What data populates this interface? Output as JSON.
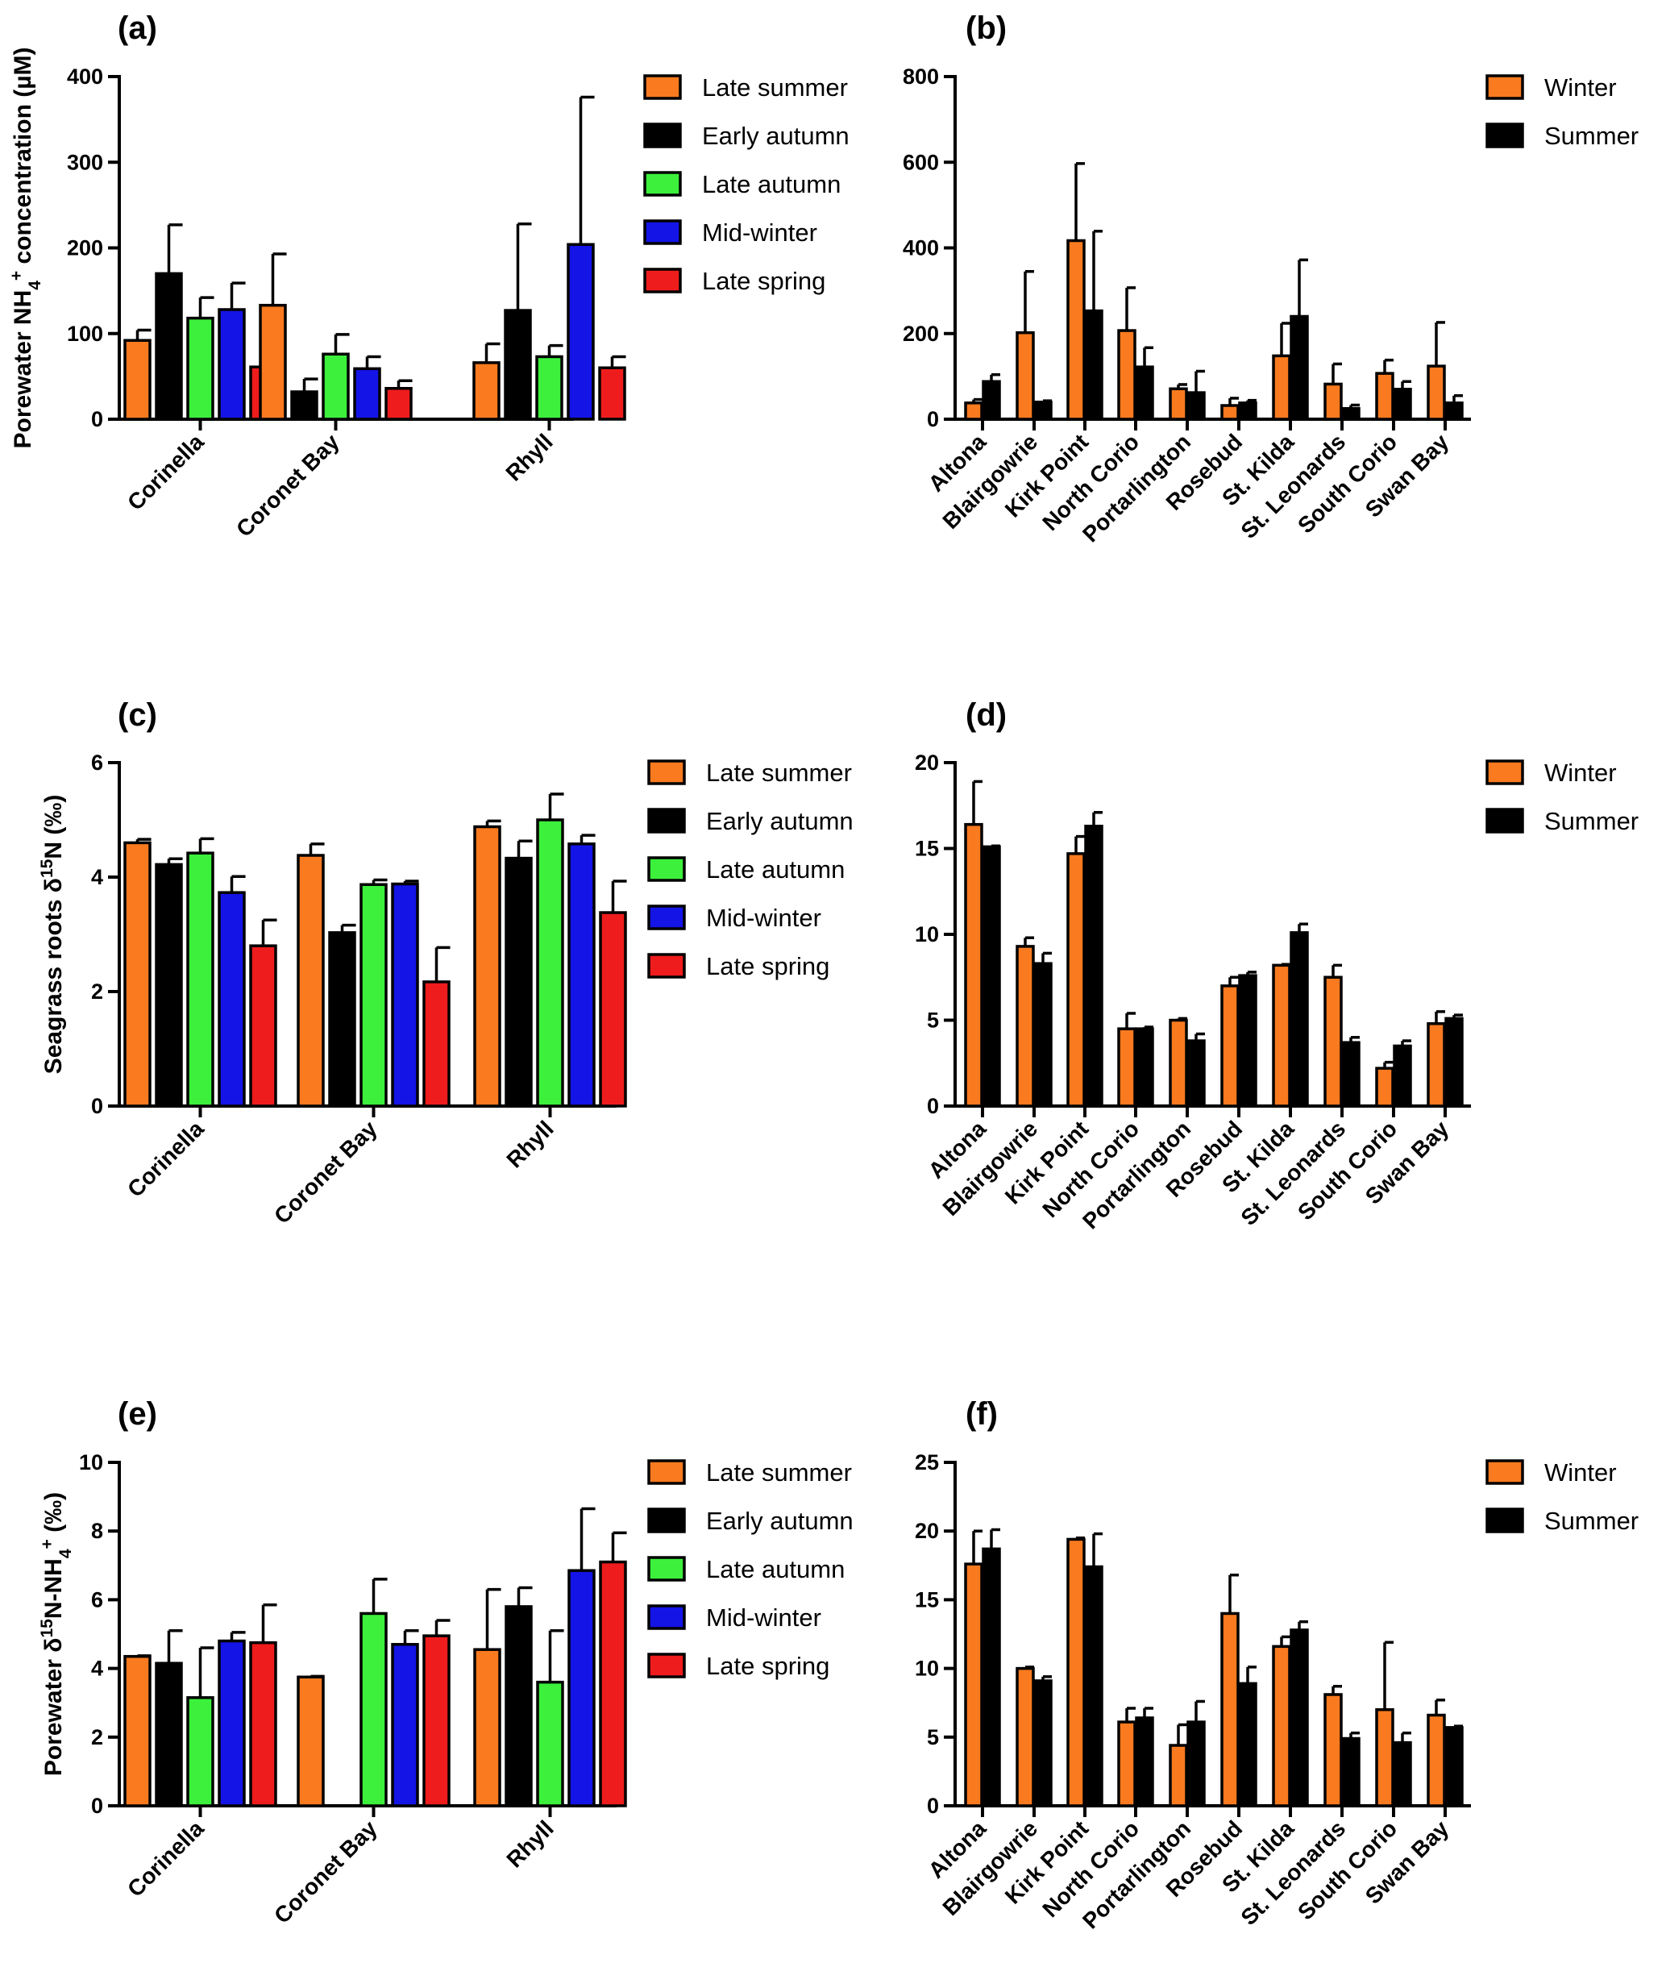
{
  "colors": {
    "late_summer": "#f97a1f",
    "early_autumn": "#000000",
    "late_autumn": "#3cf03c",
    "mid_winter": "#1414e6",
    "late_spring": "#ee1c1c",
    "winter": "#f97a1f",
    "summer": "#000000"
  },
  "chart_data": [
    {
      "panel": "(a)",
      "type": "bar",
      "ylabel_parts": [
        "Porewater NH",
        "4",
        "+",
        " concentration (µM)"
      ],
      "ylim": [
        0,
        400
      ],
      "yticks": [
        "0",
        "100",
        "200",
        "300",
        "400"
      ],
      "categories": [
        "Corinella",
        "Coronet Bay",
        "Rhyll"
      ],
      "legend": [
        "Late summer",
        "Early autumn",
        "Late autumn",
        "Mid-winter",
        "Late spring"
      ],
      "series": [
        {
          "name": "Late summer",
          "values": [
            92,
            133,
            66
          ],
          "errors": [
            12,
            60,
            22
          ]
        },
        {
          "name": "Early autumn",
          "values": [
            170,
            32,
            127
          ],
          "errors": [
            57,
            15,
            101
          ]
        },
        {
          "name": "Late autumn",
          "values": [
            118,
            76,
            73
          ],
          "errors": [
            24,
            23,
            13
          ]
        },
        {
          "name": "Mid-winter",
          "values": [
            128,
            59,
            204
          ],
          "errors": [
            31,
            14,
            172
          ]
        },
        {
          "name": "Late spring",
          "values": [
            61,
            36,
            60
          ],
          "errors": [
            7,
            9,
            13
          ]
        }
      ]
    },
    {
      "panel": "(b)",
      "type": "bar",
      "ylim": [
        0,
        800
      ],
      "yticks": [
        "0",
        "200",
        "400",
        "600",
        "800"
      ],
      "categories": [
        "Altona",
        "Blairgowrie",
        "Kirk Point",
        "North Corio",
        "Portarlington",
        "Rosebud",
        "St. Kilda",
        "St. Leonards",
        "South Corio",
        "Swan Bay"
      ],
      "legend": [
        "Winter",
        "Summer"
      ],
      "series": [
        {
          "name": "Winter",
          "values": [
            38,
            202,
            417,
            207,
            71,
            32,
            148,
            82,
            107,
            124
          ],
          "errors": [
            8,
            143,
            180,
            100,
            10,
            17,
            76,
            47,
            31,
            102
          ]
        },
        {
          "name": "Summer",
          "values": [
            88,
            40,
            253,
            122,
            62,
            38,
            240,
            25,
            70,
            38
          ],
          "errors": [
            16,
            3,
            186,
            45,
            50,
            6,
            132,
            8,
            18,
            17
          ]
        }
      ]
    },
    {
      "panel": "(c)",
      "type": "bar",
      "ylabel_parts": [
        "Seagrass  roots δ",
        "15",
        "N (‰)"
      ],
      "ylim": [
        0,
        6
      ],
      "yticks": [
        "0",
        "2",
        "4",
        "6"
      ],
      "categories": [
        "Corinella",
        "Coronet Bay",
        "Rhyll"
      ],
      "legend": [
        "Late summer",
        "Early autumn",
        "Late autumn",
        "Mid-winter",
        "Late spring"
      ],
      "series": [
        {
          "name": "Late summer",
          "values": [
            4.6,
            4.38,
            4.88
          ],
          "errors": [
            0.06,
            0.2,
            0.1
          ]
        },
        {
          "name": "Early autumn",
          "values": [
            4.22,
            3.03,
            4.33
          ],
          "errors": [
            0.1,
            0.13,
            0.3
          ]
        },
        {
          "name": "Late autumn",
          "values": [
            4.42,
            3.87,
            5.0
          ],
          "errors": [
            0.25,
            0.08,
            0.45
          ]
        },
        {
          "name": "Mid-winter",
          "values": [
            3.73,
            3.88,
            4.58
          ],
          "errors": [
            0.28,
            0.05,
            0.15
          ]
        },
        {
          "name": "Late spring",
          "values": [
            2.8,
            2.17,
            3.38
          ],
          "errors": [
            0.45,
            0.6,
            0.55
          ]
        }
      ]
    },
    {
      "panel": "(d)",
      "type": "bar",
      "ylim": [
        0,
        20
      ],
      "yticks": [
        "0",
        "5",
        "10",
        "15",
        "20"
      ],
      "categories": [
        "Altona",
        "Blairgowrie",
        "Kirk Point",
        "North Corio",
        "Portarlington",
        "Rosebud",
        "St. Kilda",
        "St. Leonards",
        "South Corio",
        "Swan Bay"
      ],
      "legend": [
        "Winter",
        "Summer"
      ],
      "series": [
        {
          "name": "Winter",
          "values": [
            16.4,
            9.3,
            14.7,
            4.5,
            5.0,
            7.0,
            8.2,
            7.5,
            2.2,
            4.8
          ],
          "errors": [
            2.5,
            0.5,
            1.0,
            0.9,
            0.1,
            0.5,
            0.05,
            0.7,
            0.35,
            0.7
          ]
        },
        {
          "name": "Summer",
          "values": [
            15.1,
            8.3,
            16.3,
            4.5,
            3.8,
            7.6,
            10.1,
            3.7,
            3.5,
            5.1
          ],
          "errors": [
            0.05,
            0.6,
            0.8,
            0.1,
            0.4,
            0.2,
            0.5,
            0.3,
            0.3,
            0.2
          ]
        }
      ]
    },
    {
      "panel": "(e)",
      "type": "bar",
      "ylabel_parts": [
        "Porewater δ",
        "15",
        "N-NH",
        "4",
        "+",
        " (‰)"
      ],
      "ylim": [
        0,
        10
      ],
      "yticks": [
        "0",
        "2",
        "4",
        "6",
        "8",
        "10"
      ],
      "categories": [
        "Corinella",
        "Coronet Bay",
        "Rhyll"
      ],
      "legend": [
        "Late summer",
        "Early autumn",
        "Late autumn",
        "Mid-winter",
        "Late spring"
      ],
      "series": [
        {
          "name": "Late summer",
          "values": [
            4.35,
            3.75,
            4.55
          ],
          "errors": [
            0.02,
            0.02,
            1.75
          ]
        },
        {
          "name": "Early autumn",
          "values": [
            4.15,
            null,
            5.8
          ],
          "errors": [
            0.95,
            null,
            0.55
          ]
        },
        {
          "name": "Late autumn",
          "values": [
            3.15,
            5.6,
            3.6
          ],
          "errors": [
            1.45,
            1.0,
            1.5
          ]
        },
        {
          "name": "Mid-winter",
          "values": [
            4.8,
            4.7,
            6.85
          ],
          "errors": [
            0.25,
            0.4,
            1.8
          ]
        },
        {
          "name": "Late spring",
          "values": [
            4.75,
            4.95,
            7.1
          ],
          "errors": [
            1.1,
            0.45,
            0.85
          ]
        }
      ]
    },
    {
      "panel": "(f)",
      "type": "bar",
      "ylim": [
        0,
        25
      ],
      "yticks": [
        "0",
        "5",
        "10",
        "15",
        "20",
        "25"
      ],
      "categories": [
        "Altona",
        "Blairgowrie",
        "Kirk Point",
        "North Corio",
        "Portarlington",
        "Rosebud",
        "St. Kilda",
        "St. Leonards",
        "South Corio",
        "Swan Bay"
      ],
      "legend": [
        "Winter",
        "Summer"
      ],
      "series": [
        {
          "name": "Winter",
          "values": [
            17.6,
            10.0,
            19.4,
            6.1,
            4.4,
            14.0,
            11.6,
            8.1,
            7.0,
            6.6
          ],
          "errors": [
            2.4,
            0.1,
            0.1,
            1.0,
            1.5,
            2.8,
            0.7,
            0.6,
            4.9,
            1.1
          ]
        },
        {
          "name": "Summer",
          "values": [
            18.7,
            9.1,
            17.4,
            6.4,
            6.1,
            8.9,
            12.8,
            4.9,
            4.6,
            5.7
          ],
          "errors": [
            1.4,
            0.3,
            2.4,
            0.7,
            1.5,
            1.2,
            0.6,
            0.4,
            0.7,
            0.1
          ]
        }
      ]
    }
  ]
}
